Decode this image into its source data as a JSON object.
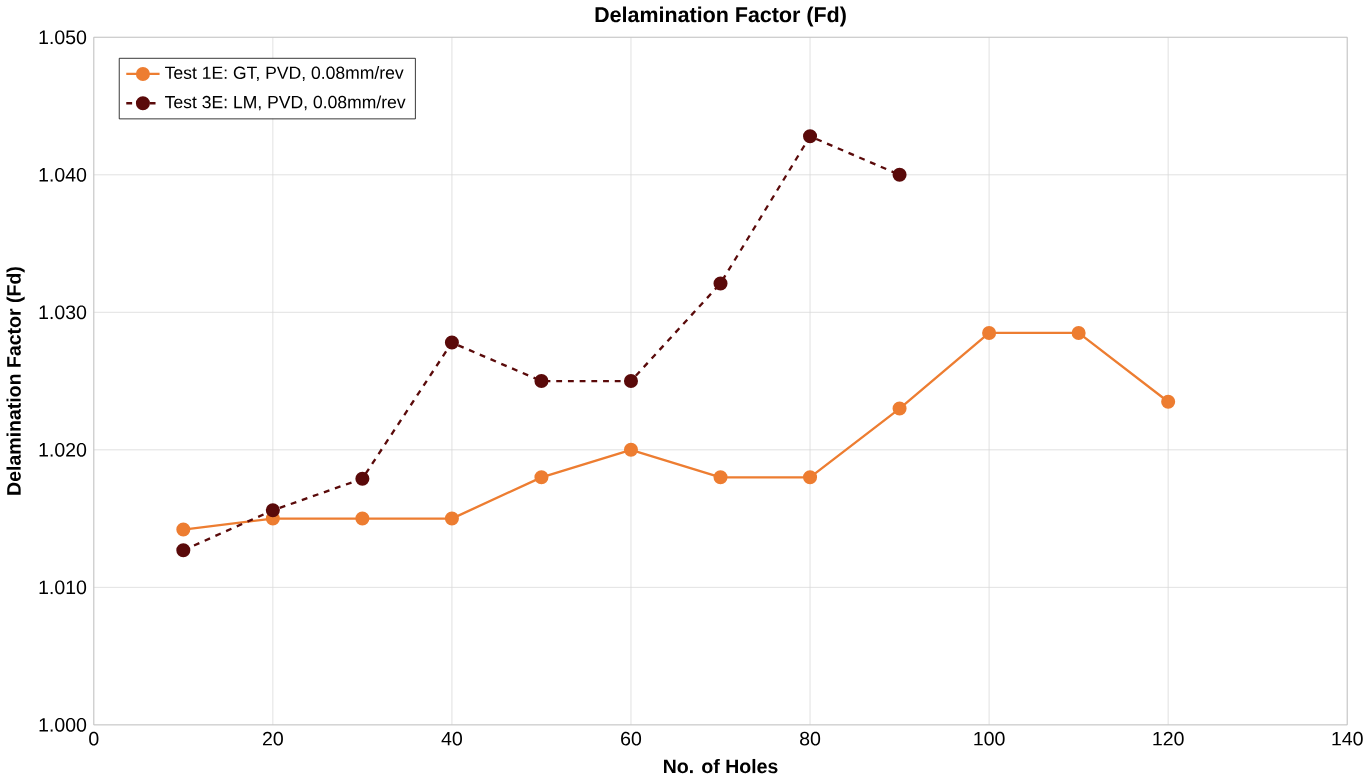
{
  "chart_data": {
    "type": "line",
    "title": "Delamination Factor (Fd)",
    "xlabel": "No. of Holes",
    "ylabel": "Delamination Factor  (Fd)",
    "xlim": [
      0,
      140
    ],
    "xticks": [
      0,
      20,
      40,
      60,
      80,
      100,
      120,
      140
    ],
    "ylim": [
      1.0,
      1.05
    ],
    "yticks": [
      {
        "value": 1.0,
        "label": "1.000"
      },
      {
        "value": 1.01,
        "label": "1.010"
      },
      {
        "value": 1.02,
        "label": "1.020"
      },
      {
        "value": 1.03,
        "label": "1.030"
      },
      {
        "value": 1.04,
        "label": "1.040"
      },
      {
        "value": 1.05,
        "label": "1.050"
      }
    ],
    "grid": true,
    "legend": "top left",
    "marker": "circle",
    "series": [
      {
        "name": "Test 1E: GT, PVD, 0.08mm/rev",
        "color": "#ed7d31",
        "line_style": "solid",
        "x": [
          10,
          20,
          30,
          40,
          50,
          60,
          70,
          80,
          90,
          100,
          110,
          120
        ],
        "values": [
          1.0142,
          1.015,
          1.015,
          1.015,
          1.018,
          1.02,
          1.018,
          1.018,
          1.023,
          1.0285,
          1.0285,
          1.0235
        ]
      },
      {
        "name": "Test 3E: LM, PVD, 0.08mm/rev",
        "color": "#5a0a0a",
        "line_style": "dashed",
        "x": [
          10,
          20,
          30,
          40,
          50,
          60,
          70,
          80,
          90
        ],
        "values": [
          1.0127,
          1.0156,
          1.0179,
          1.0278,
          1.025,
          1.025,
          1.0321,
          1.0428,
          1.04
        ]
      }
    ]
  }
}
